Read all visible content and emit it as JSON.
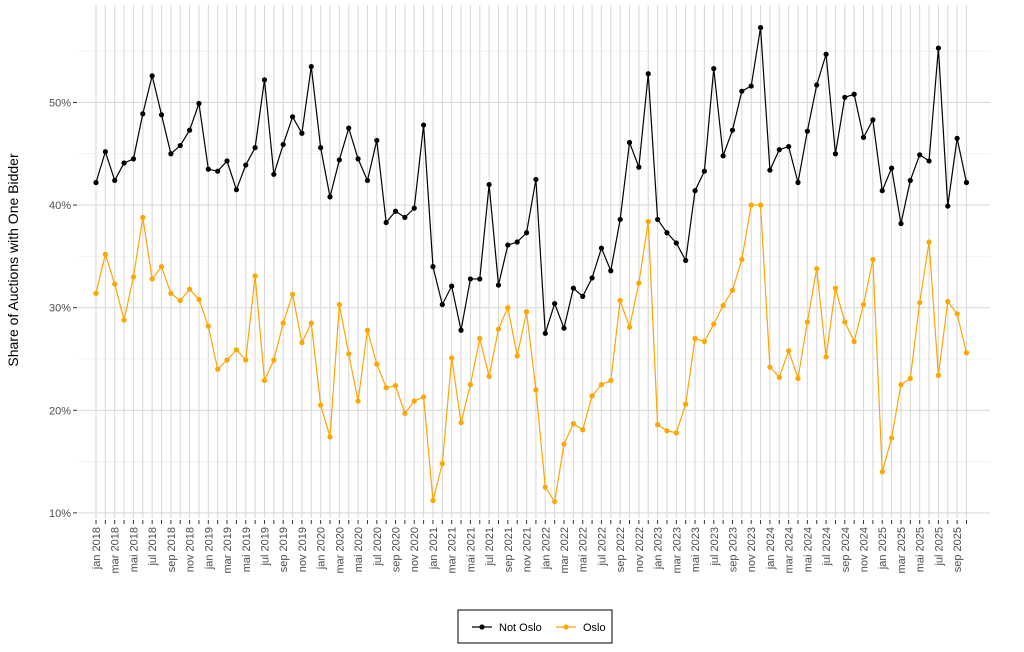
{
  "chart_data": {
    "type": "line",
    "xlabel": "",
    "ylabel": "Share of Auctions with One Bidder",
    "ylim": [
      9.5,
      59.5
    ],
    "yticks": [
      10,
      20,
      30,
      40,
      50
    ],
    "ytick_labels": [
      "10%",
      "20%",
      "30%",
      "40%",
      "50%"
    ],
    "grid": true,
    "legend_position": "bottom",
    "x_tick_labels": [
      "jan 2018",
      "mar 2018",
      "mai 2018",
      "jul 2018",
      "sep 2018",
      "nov 2018",
      "jan 2019",
      "mar 2019",
      "mai 2019",
      "jul 2019",
      "sep 2019",
      "nov 2019",
      "jan 2020",
      "mar 2020",
      "mai 2020",
      "jul 2020",
      "sep 2020",
      "nov 2020",
      "jan 2021",
      "mar 2021",
      "mai 2021",
      "jul 2021",
      "sep 2021",
      "nov 2021",
      "jan 2022",
      "mar 2022",
      "mai 2022",
      "jul 2022",
      "sep 2022",
      "nov 2022",
      "jan 2023",
      "mar 2023",
      "mai 2023",
      "jul 2023",
      "sep 2023",
      "nov 2023",
      "jan 2024",
      "mar 2024",
      "mai 2024",
      "jul 2024",
      "sep 2024",
      "nov 2024",
      "jan 2025",
      "mar 2025",
      "mai 2025",
      "jul 2025",
      "sep 2025"
    ],
    "x_start": "2018-01",
    "series": [
      {
        "name": "Not Oslo",
        "color": "#000000",
        "values": [
          42.2,
          45.2,
          42.4,
          44.1,
          44.5,
          48.9,
          52.6,
          48.8,
          45.0,
          45.8,
          47.3,
          49.9,
          43.5,
          43.3,
          44.3,
          41.5,
          43.9,
          45.6,
          52.2,
          43.0,
          45.9,
          48.6,
          47.0,
          53.5,
          45.6,
          40.8,
          44.4,
          47.5,
          44.5,
          42.4,
          46.3,
          38.3,
          39.4,
          38.8,
          39.7,
          47.8,
          34.0,
          30.3,
          32.1,
          27.8,
          32.8,
          32.8,
          42.0,
          32.2,
          36.1,
          36.4,
          37.3,
          42.5,
          27.5,
          30.4,
          28.0,
          31.9,
          31.1,
          32.9,
          35.8,
          33.6,
          38.6,
          46.1,
          43.7,
          52.8,
          38.6,
          37.3,
          36.3,
          34.6,
          41.4,
          43.3,
          53.3,
          44.8,
          47.3,
          51.1,
          51.6,
          57.3,
          43.4,
          45.4,
          45.7,
          42.2,
          47.2,
          51.7,
          54.7,
          45.0,
          50.5,
          50.8,
          46.6,
          48.3,
          41.4,
          43.6,
          38.2,
          42.4,
          44.9,
          44.3,
          55.3,
          39.9,
          46.5,
          42.2
        ]
      },
      {
        "name": "Oslo",
        "color": "#FFA500",
        "values": [
          31.4,
          35.2,
          32.3,
          28.8,
          33.0,
          38.8,
          32.8,
          34.0,
          31.4,
          30.7,
          31.8,
          30.8,
          28.2,
          24.0,
          24.9,
          25.9,
          24.9,
          33.1,
          22.9,
          24.9,
          28.5,
          31.3,
          26.6,
          28.5,
          20.5,
          17.4,
          30.3,
          25.5,
          20.9,
          27.8,
          24.5,
          22.2,
          22.4,
          19.7,
          20.9,
          21.3,
          11.2,
          14.8,
          25.1,
          18.8,
          22.5,
          27.0,
          23.3,
          27.9,
          30.0,
          25.3,
          29.6,
          22.0,
          12.5,
          11.1,
          16.7,
          18.7,
          18.1,
          21.4,
          22.5,
          22.9,
          30.7,
          28.1,
          32.4,
          38.4,
          18.6,
          18.0,
          17.8,
          20.6,
          27.0,
          26.7,
          28.4,
          30.2,
          31.7,
          34.7,
          40.0,
          40.0,
          24.2,
          23.2,
          25.8,
          23.1,
          28.6,
          33.8,
          25.2,
          31.9,
          28.6,
          26.7,
          30.3,
          34.7,
          14.0,
          17.3,
          22.5,
          23.1,
          30.5,
          36.4,
          23.4,
          30.6,
          29.4,
          25.6
        ]
      }
    ]
  }
}
